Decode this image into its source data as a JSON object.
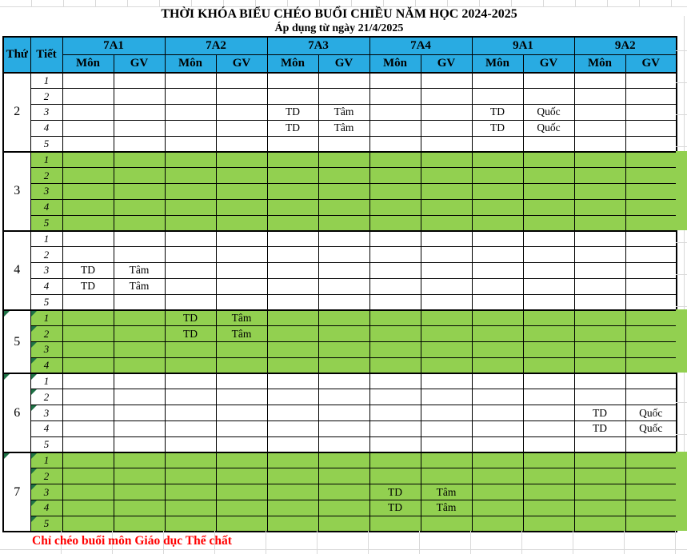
{
  "title": "THỜI KHÓA BIỂU CHÉO BUỔI CHIỀU NĂM HỌC 2024-2025",
  "subtitle": "Áp dụng từ ngày 21/4/2025",
  "header": {
    "day_col": "Thứ",
    "period_col": "Tiết",
    "sub_mon": "Môn",
    "sub_gv": "GV",
    "classes": [
      "7A1",
      "7A2",
      "7A3",
      "7A4",
      "9A1",
      "9A2"
    ]
  },
  "days": [
    {
      "day": "2",
      "green": false,
      "flag_day": false,
      "flagged_periods": [],
      "dotted": false,
      "periods": [
        {
          "p": "1",
          "cells": [
            "",
            "",
            "",
            "",
            "",
            "",
            "",
            "",
            "",
            "",
            "",
            ""
          ]
        },
        {
          "p": "2",
          "cells": [
            "",
            "",
            "",
            "",
            "",
            "",
            "",
            "",
            "",
            "",
            "",
            ""
          ]
        },
        {
          "p": "3",
          "cells": [
            "",
            "",
            "",
            "",
            "TD",
            "Tâm",
            "",
            "",
            "TD",
            "Quốc",
            "",
            ""
          ]
        },
        {
          "p": "4",
          "cells": [
            "",
            "",
            "",
            "",
            "TD",
            "Tâm",
            "",
            "",
            "TD",
            "Quốc",
            "",
            ""
          ]
        },
        {
          "p": "5",
          "cells": [
            "",
            "",
            "",
            "",
            "",
            "",
            "",
            "",
            "",
            "",
            "",
            ""
          ]
        }
      ]
    },
    {
      "day": "3",
      "green": true,
      "flag_day": false,
      "flagged_periods": [],
      "dotted": false,
      "periods": [
        {
          "p": "1",
          "cells": [
            "",
            "",
            "",
            "",
            "",
            "",
            "",
            "",
            "",
            "",
            "",
            ""
          ]
        },
        {
          "p": "2",
          "cells": [
            "",
            "",
            "",
            "",
            "",
            "",
            "",
            "",
            "",
            "",
            "",
            ""
          ]
        },
        {
          "p": "3",
          "cells": [
            "",
            "",
            "",
            "",
            "",
            "",
            "",
            "",
            "",
            "",
            "",
            ""
          ]
        },
        {
          "p": "4",
          "cells": [
            "",
            "",
            "",
            "",
            "",
            "",
            "",
            "",
            "",
            "",
            "",
            ""
          ]
        },
        {
          "p": "5",
          "cells": [
            "",
            "",
            "",
            "",
            "",
            "",
            "",
            "",
            "",
            "",
            "",
            ""
          ]
        }
      ]
    },
    {
      "day": "4",
      "green": false,
      "flag_day": false,
      "flagged_periods": [],
      "dotted": false,
      "periods": [
        {
          "p": "1",
          "cells": [
            "",
            "",
            "",
            "",
            "",
            "",
            "",
            "",
            "",
            "",
            "",
            ""
          ]
        },
        {
          "p": "2",
          "cells": [
            "",
            "",
            "",
            "",
            "",
            "",
            "",
            "",
            "",
            "",
            "",
            ""
          ]
        },
        {
          "p": "3",
          "cells": [
            "TD",
            "Tâm",
            "",
            "",
            "",
            "",
            "",
            "",
            "",
            "",
            "",
            ""
          ]
        },
        {
          "p": "4",
          "cells": [
            "TD",
            "Tâm",
            "",
            "",
            "",
            "",
            "",
            "",
            "",
            "",
            "",
            ""
          ]
        },
        {
          "p": "5",
          "cells": [
            "",
            "",
            "",
            "",
            "",
            "",
            "",
            "",
            "",
            "",
            "",
            ""
          ]
        }
      ]
    },
    {
      "day": "5",
      "green": true,
      "flag_day": true,
      "flagged_periods": [
        1,
        2,
        3,
        4
      ],
      "dotted": true,
      "periods": [
        {
          "p": "1",
          "cells": [
            "",
            "",
            "TD",
            "Tâm",
            "",
            "",
            "",
            "",
            "",
            "",
            "",
            ""
          ]
        },
        {
          "p": "2",
          "cells": [
            "",
            "",
            "TD",
            "Tâm",
            "",
            "",
            "",
            "",
            "",
            "",
            "",
            ""
          ]
        },
        {
          "p": "3",
          "cells": [
            "",
            "",
            "",
            "",
            "",
            "",
            "",
            "",
            "",
            "",
            "",
            ""
          ]
        },
        {
          "p": "4",
          "cells": [
            "",
            "",
            "",
            "",
            "",
            "",
            "",
            "",
            "",
            "",
            "",
            ""
          ]
        }
      ]
    },
    {
      "day": "6",
      "green": false,
      "flag_day": true,
      "flagged_periods": [
        1,
        2,
        3
      ],
      "dotted": false,
      "periods": [
        {
          "p": "1",
          "cells": [
            "",
            "",
            "",
            "",
            "",
            "",
            "",
            "",
            "",
            "",
            "",
            ""
          ]
        },
        {
          "p": "2",
          "cells": [
            "",
            "",
            "",
            "",
            "",
            "",
            "",
            "",
            "",
            "",
            "",
            ""
          ]
        },
        {
          "p": "3",
          "cells": [
            "",
            "",
            "",
            "",
            "",
            "",
            "",
            "",
            "",
            "",
            "TD",
            "Quốc"
          ]
        },
        {
          "p": "4",
          "cells": [
            "",
            "",
            "",
            "",
            "",
            "",
            "",
            "",
            "",
            "",
            "TD",
            "Quốc"
          ]
        },
        {
          "p": "5",
          "cells": [
            "",
            "",
            "",
            "",
            "",
            "",
            "",
            "",
            "",
            "",
            "",
            ""
          ]
        }
      ]
    },
    {
      "day": "7",
      "green": true,
      "flag_day": true,
      "flagged_periods": [
        1,
        2,
        3,
        4,
        5
      ],
      "dotted": true,
      "periods": [
        {
          "p": "1",
          "cells": [
            "",
            "",
            "",
            "",
            "",
            "",
            "",
            "",
            "",
            "",
            "",
            ""
          ]
        },
        {
          "p": "2",
          "cells": [
            "",
            "",
            "",
            "",
            "",
            "",
            "",
            "",
            "",
            "",
            "",
            ""
          ]
        },
        {
          "p": "3",
          "cells": [
            "",
            "",
            "",
            "",
            "",
            "",
            "TD",
            "Tâm",
            "",
            "",
            "",
            ""
          ]
        },
        {
          "p": "4",
          "cells": [
            "",
            "",
            "",
            "",
            "",
            "",
            "TD",
            "Tâm",
            "",
            "",
            "",
            ""
          ]
        },
        {
          "p": "5",
          "cells": [
            "",
            "",
            "",
            "",
            "",
            "",
            "",
            "",
            "",
            "",
            "",
            ""
          ]
        }
      ]
    }
  ],
  "footer_note": "Chỉ chéo buổi môn Giáo dục Thể chất",
  "colors": {
    "header_bg": "#29ABE2",
    "band_green": "#92D050",
    "flag_green": "#1E7145",
    "note_red": "#FF0000",
    "gridline": "#D9D9D9",
    "border": "#000000"
  }
}
